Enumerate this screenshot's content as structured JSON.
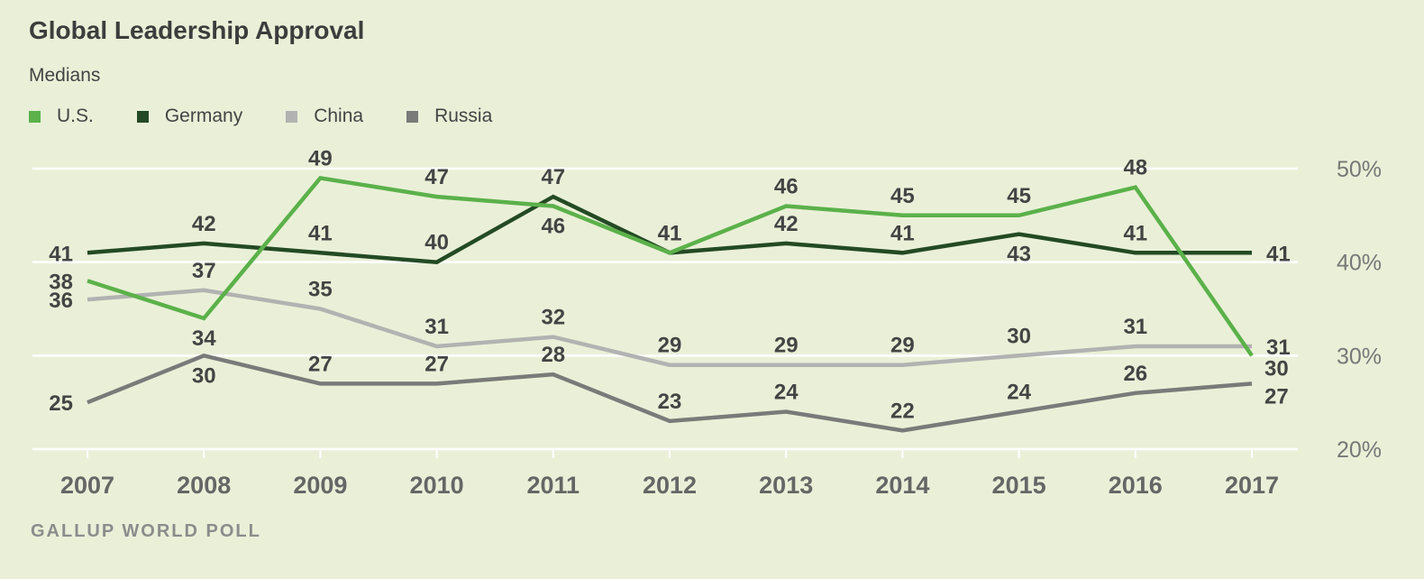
{
  "title": "Global Leadership Approval",
  "subtitle": "Medians",
  "source": "GALLUP WORLD POLL",
  "colors": {
    "us": "#5bb14a",
    "germany": "#234a24",
    "china": "#b2b2b2",
    "russia": "#7a7a7a",
    "grid": "#ffffff",
    "background": "#eaf0d8"
  },
  "chart_data": {
    "type": "line",
    "title": "Global Leadership Approval",
    "subtitle": "Medians",
    "x": [
      "2007",
      "2008",
      "2009",
      "2010",
      "2011",
      "2012",
      "2013",
      "2014",
      "2015",
      "2016",
      "2017"
    ],
    "ylim": [
      20,
      50
    ],
    "yticks": [
      20,
      30,
      40,
      50
    ],
    "ytick_labels": [
      "20%",
      "30%",
      "40%",
      "50%"
    ],
    "y_axis_position": "right",
    "grid": true,
    "legend_position": "top-left",
    "series": [
      {
        "name": "U.S.",
        "key": "us",
        "values": [
          38,
          34,
          49,
          47,
          46,
          41,
          46,
          45,
          45,
          48,
          30
        ],
        "label_positions": [
          "left",
          "below",
          "above",
          "above",
          "below",
          "above",
          "above",
          "above",
          "above",
          "above",
          "below-right"
        ]
      },
      {
        "name": "Germany",
        "key": "germany",
        "values": [
          41,
          42,
          41,
          40,
          47,
          41,
          42,
          41,
          43,
          41,
          41
        ],
        "label_positions": [
          "left",
          "above",
          "above",
          "above",
          "above",
          "above",
          "above",
          "above",
          "below",
          "above",
          "right"
        ]
      },
      {
        "name": "China",
        "key": "china",
        "values": [
          36,
          37,
          35,
          31,
          32,
          29,
          29,
          29,
          30,
          31,
          31
        ],
        "label_positions": [
          "left",
          "above",
          "above",
          "above",
          "above",
          "above",
          "above",
          "above",
          "above",
          "above",
          "right"
        ]
      },
      {
        "name": "Russia",
        "key": "russia",
        "values": [
          25,
          30,
          27,
          27,
          28,
          23,
          24,
          22,
          24,
          26,
          27
        ],
        "label_positions": [
          "left",
          "below",
          "above",
          "above",
          "above",
          "above",
          "above",
          "above",
          "above",
          "above",
          "below-right"
        ]
      }
    ]
  }
}
